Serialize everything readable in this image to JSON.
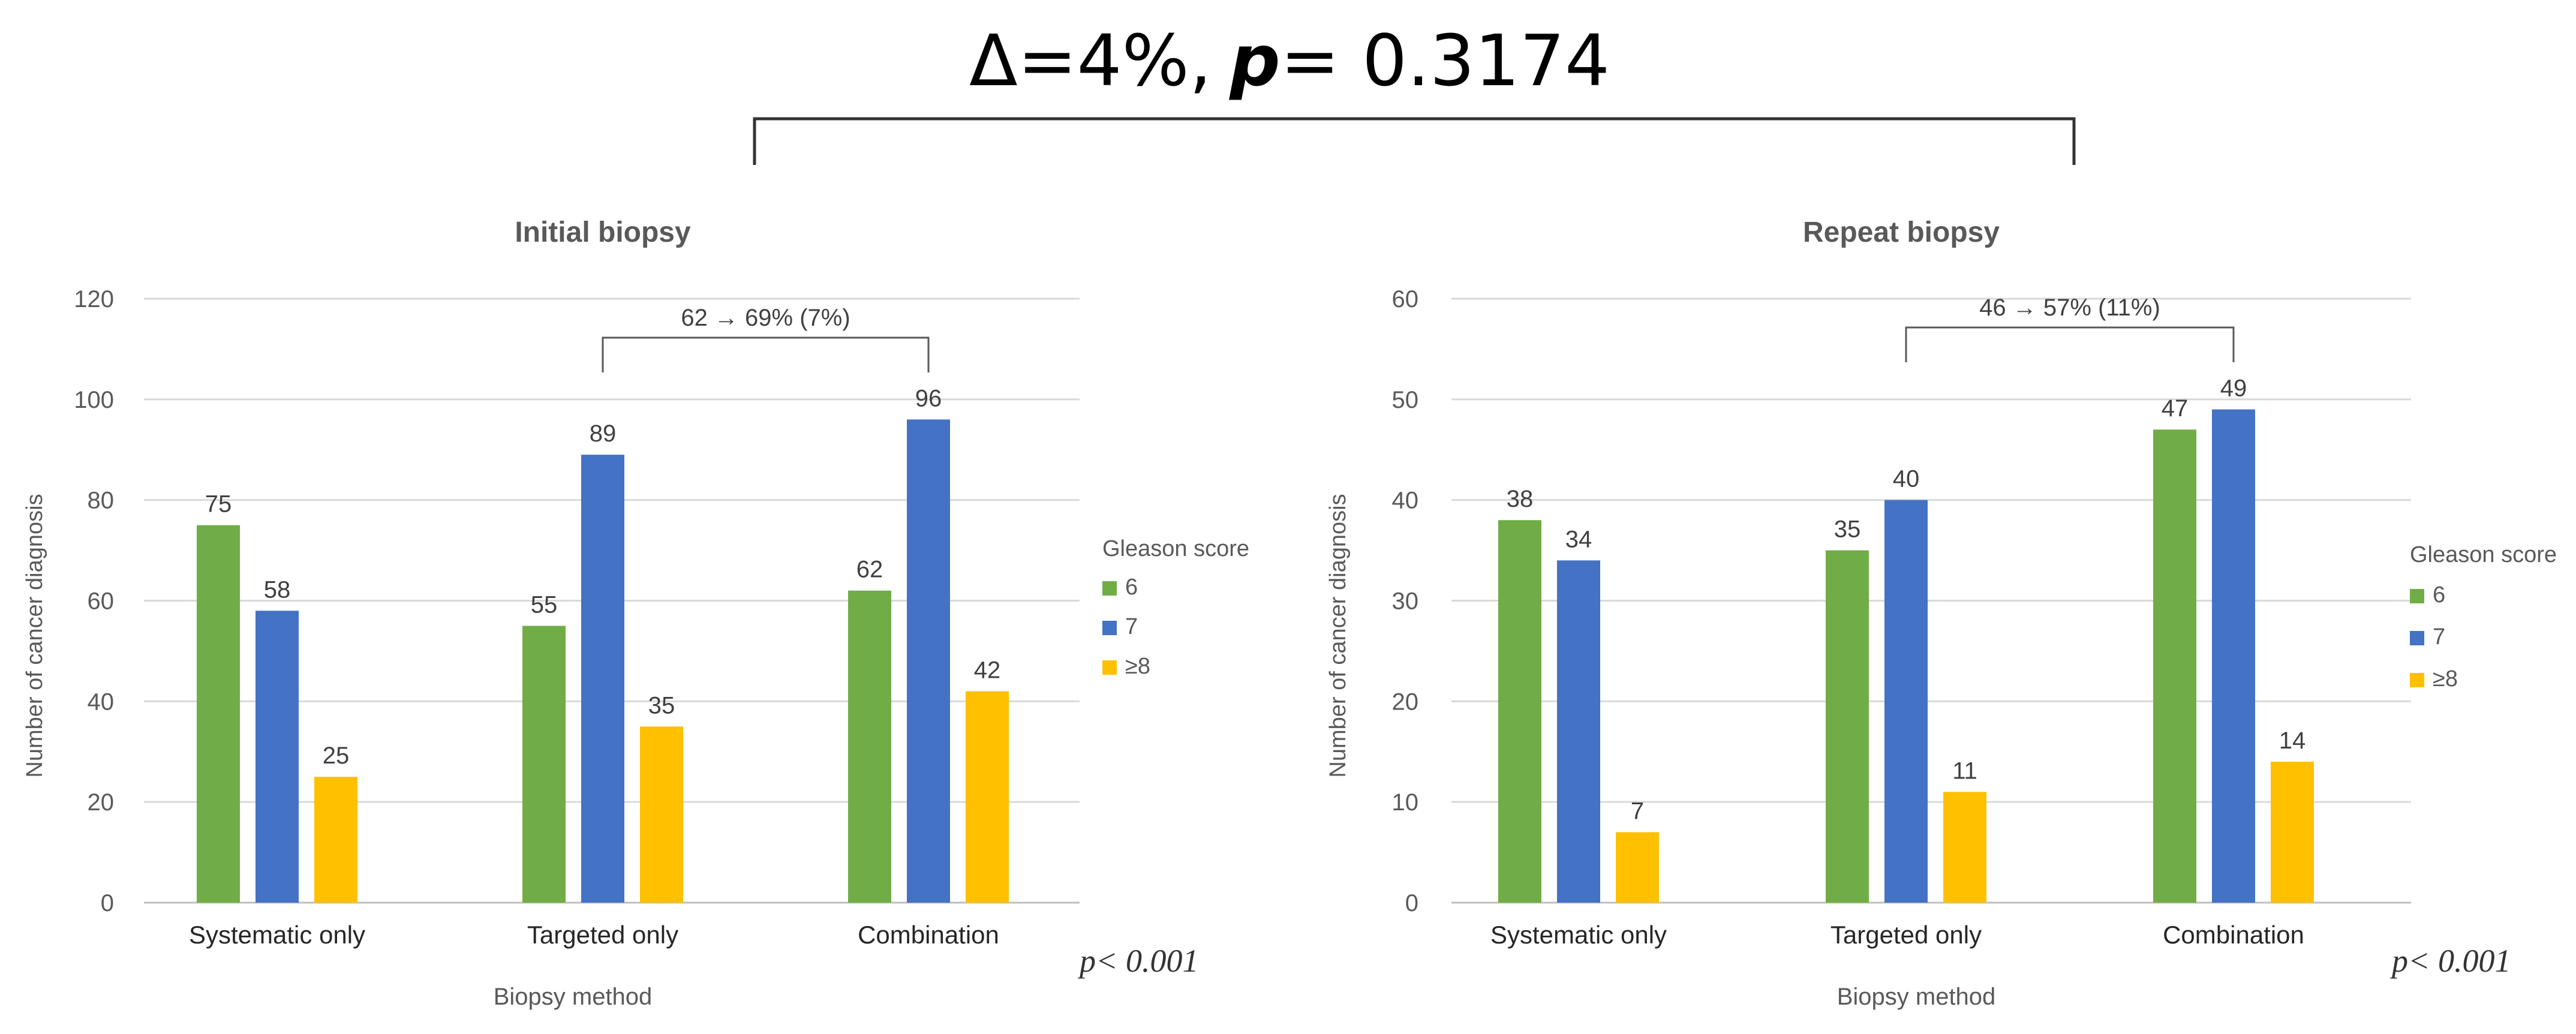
{
  "comparison": {
    "delta_label": "Δ=4%,",
    "p_symbol": "p",
    "p_value": "= 0.3174"
  },
  "colors": {
    "gleason_6": "#70AD47",
    "gleason_7": "#4472C4",
    "gleason_8plus": "#FFC000",
    "axis_text": "#595959",
    "gridline": "#D9D9D9",
    "bracket": "#595959"
  },
  "chart_data": [
    {
      "type": "bar",
      "title": "Initial biopsy",
      "xlabel": "Biopsy method",
      "ylabel": "Number of cancer diagnosis",
      "categories": [
        "Systematic only",
        "Targeted only",
        "Combination"
      ],
      "ylim": [
        0,
        120
      ],
      "yticks": [
        0,
        20,
        40,
        60,
        80,
        100,
        120
      ],
      "legend_title": "Gleason score",
      "legend_position": "right",
      "grid": true,
      "series": [
        {
          "name": "6",
          "values": [
            75,
            55,
            62
          ]
        },
        {
          "name": "7",
          "values": [
            58,
            89,
            96
          ]
        },
        {
          "name": "≥8",
          "values": [
            25,
            35,
            42
          ]
        }
      ],
      "bracket": {
        "from": "Targeted only",
        "to": "Combination",
        "label": "62 → 69% (7%)"
      },
      "p_note": "p< 0.001"
    },
    {
      "type": "bar",
      "title": "Repeat biopsy",
      "xlabel": "Biopsy method",
      "ylabel": "Number of cancer diagnosis",
      "categories": [
        "Systematic only",
        "Targeted only",
        "Combination"
      ],
      "ylim": [
        0,
        60
      ],
      "yticks": [
        0,
        10,
        20,
        30,
        40,
        50,
        60
      ],
      "legend_title": "Gleason score",
      "legend_position": "right",
      "grid": true,
      "series": [
        {
          "name": "6",
          "values": [
            38,
            35,
            47
          ]
        },
        {
          "name": "7",
          "values": [
            34,
            40,
            49
          ]
        },
        {
          "name": "≥8",
          "values": [
            7,
            11,
            14
          ]
        }
      ],
      "bracket": {
        "from": "Targeted only",
        "to": "Combination",
        "label": "46 → 57% (11%)"
      },
      "p_note": "p< 0.001"
    }
  ]
}
